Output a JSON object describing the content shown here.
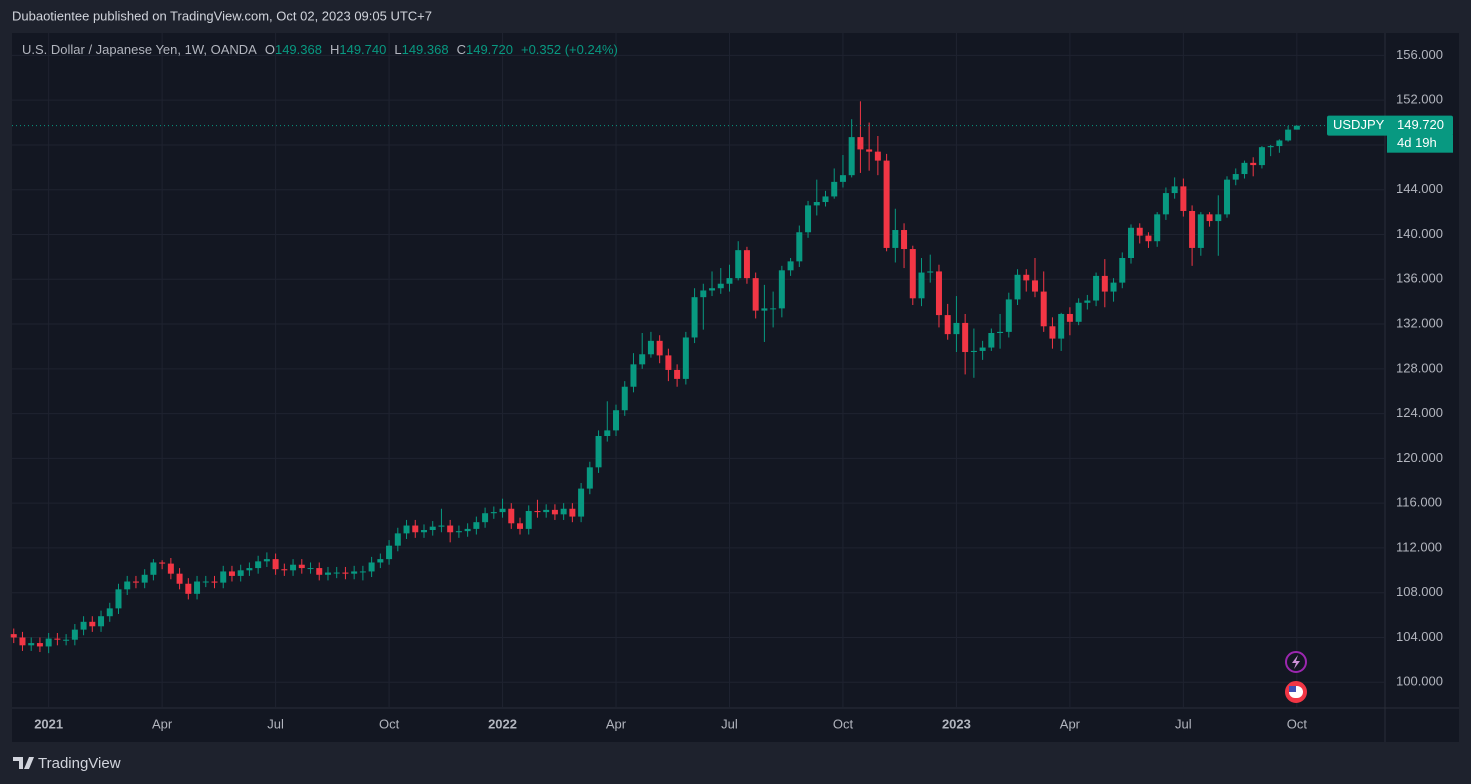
{
  "header": {
    "publisher": "Dubaotientee published on TradingView.com, Oct 02, 2023 09:05 UTC+7"
  },
  "footer": {
    "brand": "TradingView"
  },
  "chart_data": {
    "type": "candlestick",
    "symbol_title": "U.S. Dollar / Japanese Yen, 1W, OANDA",
    "legend_keys": [
      "O",
      "H",
      "L",
      "C"
    ],
    "legend_labels": [
      "149.368",
      "149.740",
      "149.368",
      "149.720"
    ],
    "change_label": "+0.352 (+0.24%)",
    "price_tag": {
      "symbol": "USDJPY",
      "price": "149.720",
      "countdown": "4d 19h"
    },
    "up_color": "#089981",
    "down_color": "#f23645",
    "grid": true,
    "xlim": [
      -0.2,
      157.1
    ],
    "xticks": [
      {
        "value": 4,
        "label": "2021"
      },
      {
        "value": 17,
        "label": "Apr"
      },
      {
        "value": 30,
        "label": "Jul"
      },
      {
        "value": 43,
        "label": "Oct"
      },
      {
        "value": 56,
        "label": "2022"
      },
      {
        "value": 69,
        "label": "Apr"
      },
      {
        "value": 82,
        "label": "Jul"
      },
      {
        "value": 95,
        "label": "Oct"
      },
      {
        "value": 108,
        "label": "2023"
      },
      {
        "value": 121,
        "label": "Apr"
      },
      {
        "value": 134,
        "label": "Jul"
      },
      {
        "value": 147,
        "label": "Oct"
      }
    ],
    "ylim": [
      97.7,
      158.0
    ],
    "yticks": [
      {
        "value": 100,
        "label": "100.000"
      },
      {
        "value": 104,
        "label": "104.000"
      },
      {
        "value": 108,
        "label": "108.000"
      },
      {
        "value": 112,
        "label": "112.000"
      },
      {
        "value": 116,
        "label": "116.000"
      },
      {
        "value": 120,
        "label": "120.000"
      },
      {
        "value": 124,
        "label": "124.000"
      },
      {
        "value": 128,
        "label": "128.000"
      },
      {
        "value": 132,
        "label": "132.000"
      },
      {
        "value": 136,
        "label": "136.000"
      },
      {
        "value": 140,
        "label": "140.000"
      },
      {
        "value": 144,
        "label": "144.000"
      },
      {
        "value": 148,
        "label": "148.000"
      },
      {
        "value": 152,
        "label": "152.000"
      },
      {
        "value": 156,
        "label": "156.000"
      }
    ],
    "ohlc": [
      [
        104.3,
        104.8,
        103.5,
        104.0
      ],
      [
        104.0,
        104.5,
        102.8,
        103.3
      ],
      [
        103.3,
        104.0,
        102.8,
        103.5
      ],
      [
        103.5,
        104.0,
        102.7,
        103.2
      ],
      [
        103.2,
        104.4,
        102.6,
        103.9
      ],
      [
        103.9,
        104.4,
        103.3,
        103.8
      ],
      [
        103.8,
        104.3,
        103.3,
        103.8
      ],
      [
        103.8,
        105.2,
        103.3,
        104.7
      ],
      [
        104.7,
        105.9,
        104.2,
        105.4
      ],
      [
        105.4,
        105.9,
        104.5,
        105.0
      ],
      [
        105.0,
        106.4,
        104.5,
        105.9
      ],
      [
        105.9,
        107.1,
        105.4,
        106.6
      ],
      [
        106.6,
        108.8,
        106.1,
        108.3
      ],
      [
        108.3,
        109.5,
        107.8,
        109.0
      ],
      [
        109.0,
        109.5,
        108.4,
        108.9
      ],
      [
        108.9,
        110.1,
        108.4,
        109.6
      ],
      [
        109.6,
        111.0,
        109.1,
        110.7
      ],
      [
        110.7,
        110.9,
        110.1,
        110.6
      ],
      [
        110.6,
        111.1,
        109.2,
        109.7
      ],
      [
        109.7,
        110.2,
        108.3,
        108.8
      ],
      [
        108.8,
        109.3,
        107.4,
        107.9
      ],
      [
        107.9,
        109.5,
        107.4,
        109.0
      ],
      [
        109.0,
        109.5,
        108.5,
        109.0
      ],
      [
        109.0,
        109.5,
        108.4,
        108.9
      ],
      [
        108.9,
        110.4,
        108.4,
        109.9
      ],
      [
        109.9,
        110.4,
        109.0,
        109.5
      ],
      [
        109.5,
        110.5,
        109.0,
        110.0
      ],
      [
        110.0,
        110.7,
        109.5,
        110.2
      ],
      [
        110.2,
        111.3,
        109.7,
        110.8
      ],
      [
        110.8,
        111.6,
        110.3,
        111.0
      ],
      [
        111.0,
        111.5,
        109.6,
        110.1
      ],
      [
        110.1,
        110.6,
        109.5,
        110.0
      ],
      [
        110.0,
        111.0,
        109.5,
        110.5
      ],
      [
        110.5,
        111.0,
        109.7,
        110.2
      ],
      [
        110.2,
        110.7,
        109.7,
        110.2
      ],
      [
        110.2,
        110.7,
        109.1,
        109.6
      ],
      [
        109.6,
        110.3,
        109.1,
        109.8
      ],
      [
        109.8,
        110.3,
        109.3,
        109.8
      ],
      [
        109.8,
        110.3,
        109.2,
        109.7
      ],
      [
        109.7,
        110.4,
        109.2,
        109.9
      ],
      [
        109.9,
        110.4,
        109.1,
        109.9
      ],
      [
        109.9,
        111.2,
        109.4,
        110.7
      ],
      [
        110.7,
        111.5,
        110.2,
        111.0
      ],
      [
        111.0,
        112.7,
        110.5,
        112.2
      ],
      [
        112.2,
        113.8,
        111.7,
        113.3
      ],
      [
        113.3,
        114.5,
        112.8,
        114.0
      ],
      [
        114.0,
        114.5,
        112.9,
        113.4
      ],
      [
        113.4,
        114.1,
        112.9,
        113.6
      ],
      [
        113.6,
        114.4,
        113.1,
        113.9
      ],
      [
        113.9,
        115.5,
        113.4,
        114.0
      ],
      [
        114.0,
        114.5,
        112.5,
        113.4
      ],
      [
        113.4,
        114.0,
        112.9,
        113.5
      ],
      [
        113.5,
        114.2,
        113.0,
        113.7
      ],
      [
        113.7,
        114.8,
        113.2,
        114.3
      ],
      [
        114.3,
        115.6,
        113.8,
        115.1
      ],
      [
        115.1,
        115.7,
        114.6,
        115.2
      ],
      [
        115.2,
        116.4,
        114.7,
        115.5
      ],
      [
        115.5,
        116.0,
        113.7,
        114.2
      ],
      [
        114.2,
        114.7,
        113.2,
        113.7
      ],
      [
        113.7,
        115.8,
        113.2,
        115.3
      ],
      [
        115.3,
        116.3,
        114.7,
        115.2
      ],
      [
        115.2,
        115.9,
        114.7,
        115.4
      ],
      [
        115.4,
        115.9,
        114.5,
        115.0
      ],
      [
        115.0,
        116.0,
        114.5,
        115.5
      ],
      [
        115.5,
        116.0,
        114.3,
        114.8
      ],
      [
        114.8,
        117.8,
        114.3,
        117.3
      ],
      [
        117.3,
        119.7,
        116.8,
        119.2
      ],
      [
        119.2,
        122.5,
        118.7,
        122.0
      ],
      [
        122.0,
        125.1,
        121.5,
        122.5
      ],
      [
        122.5,
        124.8,
        122.0,
        124.3
      ],
      [
        124.3,
        126.9,
        123.8,
        126.4
      ],
      [
        126.4,
        129.4,
        125.9,
        128.4
      ],
      [
        128.4,
        131.2,
        128.0,
        129.3
      ],
      [
        129.3,
        131.3,
        129.0,
        130.5
      ],
      [
        130.5,
        131.0,
        128.5,
        129.2
      ],
      [
        129.2,
        129.8,
        126.9,
        127.9
      ],
      [
        127.9,
        128.4,
        126.4,
        127.1
      ],
      [
        127.1,
        131.3,
        126.6,
        130.8
      ],
      [
        130.8,
        135.2,
        130.3,
        134.4
      ],
      [
        134.4,
        135.6,
        131.5,
        135.0
      ],
      [
        135.0,
        136.7,
        134.5,
        135.2
      ],
      [
        135.2,
        137.0,
        134.7,
        135.6
      ],
      [
        135.6,
        137.3,
        134.9,
        136.1
      ],
      [
        136.1,
        139.4,
        135.9,
        138.6
      ],
      [
        138.6,
        138.9,
        135.6,
        136.1
      ],
      [
        136.1,
        136.6,
        132.5,
        133.2
      ],
      [
        133.2,
        135.5,
        130.4,
        133.4
      ],
      [
        133.4,
        134.9,
        131.7,
        133.4
      ],
      [
        133.4,
        137.2,
        132.6,
        136.8
      ],
      [
        136.8,
        137.9,
        136.3,
        137.6
      ],
      [
        137.6,
        140.8,
        137.1,
        140.2
      ],
      [
        140.2,
        143.0,
        139.7,
        142.6
      ],
      [
        142.6,
        144.9,
        141.7,
        142.9
      ],
      [
        142.9,
        143.9,
        142.5,
        143.4
      ],
      [
        143.4,
        145.9,
        143.2,
        144.7
      ],
      [
        144.7,
        147.1,
        144.2,
        145.3
      ],
      [
        145.3,
        150.3,
        145.1,
        148.7
      ],
      [
        148.7,
        151.9,
        145.5,
        147.6
      ],
      [
        147.6,
        150.0,
        145.7,
        147.4
      ],
      [
        147.4,
        148.8,
        145.3,
        146.6
      ],
      [
        146.6,
        147.2,
        138.5,
        138.8
      ],
      [
        138.8,
        142.3,
        137.5,
        140.4
      ],
      [
        140.4,
        141.0,
        137.0,
        138.7
      ],
      [
        138.7,
        139.0,
        133.7,
        134.3
      ],
      [
        134.3,
        137.9,
        133.6,
        136.6
      ],
      [
        136.6,
        138.2,
        135.7,
        136.7
      ],
      [
        136.7,
        137.3,
        131.7,
        132.8
      ],
      [
        132.8,
        133.8,
        130.6,
        131.1
      ],
      [
        131.1,
        134.5,
        129.5,
        132.1
      ],
      [
        132.1,
        132.9,
        127.5,
        129.5
      ],
      [
        129.5,
        131.6,
        127.2,
        129.6
      ],
      [
        129.6,
        130.5,
        128.8,
        129.9
      ],
      [
        129.9,
        131.6,
        129.6,
        131.2
      ],
      [
        131.2,
        132.9,
        129.8,
        131.3
      ],
      [
        131.3,
        134.8,
        130.8,
        134.2
      ],
      [
        134.2,
        136.9,
        133.7,
        136.4
      ],
      [
        136.4,
        136.9,
        134.9,
        135.9
      ],
      [
        135.9,
        137.9,
        134.4,
        134.9
      ],
      [
        134.9,
        136.7,
        131.3,
        131.8
      ],
      [
        131.8,
        132.6,
        129.8,
        130.7
      ],
      [
        130.7,
        133.0,
        129.6,
        132.9
      ],
      [
        132.9,
        133.5,
        131.0,
        132.2
      ],
      [
        132.2,
        134.3,
        131.9,
        133.9
      ],
      [
        133.9,
        134.6,
        133.3,
        134.1
      ],
      [
        134.1,
        136.6,
        133.6,
        136.3
      ],
      [
        136.3,
        137.8,
        133.5,
        134.9
      ],
      [
        134.9,
        136.1,
        134.0,
        135.7
      ],
      [
        135.7,
        138.4,
        135.2,
        137.9
      ],
      [
        137.9,
        140.9,
        137.4,
        140.6
      ],
      [
        140.6,
        141.0,
        139.2,
        139.9
      ],
      [
        139.9,
        140.2,
        138.8,
        139.4
      ],
      [
        139.4,
        142.0,
        138.9,
        141.8
      ],
      [
        141.8,
        144.2,
        141.3,
        143.7
      ],
      [
        143.7,
        145.1,
        143.2,
        144.3
      ],
      [
        144.3,
        145.0,
        141.6,
        142.1
      ],
      [
        142.1,
        142.6,
        137.2,
        138.8
      ],
      [
        138.8,
        142.0,
        138.1,
        141.8
      ],
      [
        141.8,
        142.0,
        140.7,
        141.2
      ],
      [
        141.2,
        143.5,
        138.1,
        141.8
      ],
      [
        141.8,
        145.2,
        141.5,
        144.9
      ],
      [
        144.9,
        145.9,
        144.4,
        145.4
      ],
      [
        145.4,
        146.6,
        145.0,
        146.4
      ],
      [
        146.4,
        146.9,
        145.2,
        146.2
      ],
      [
        146.2,
        147.9,
        145.9,
        147.8
      ],
      [
        147.8,
        148.0,
        147.0,
        147.9
      ],
      [
        147.9,
        148.5,
        147.3,
        148.4
      ],
      [
        148.4,
        149.7,
        148.3,
        149.368
      ],
      [
        149.368,
        149.74,
        149.368,
        149.72
      ]
    ]
  }
}
